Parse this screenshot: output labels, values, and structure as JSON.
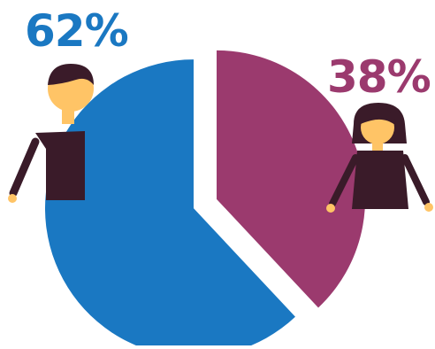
{
  "chart_data": {
    "type": "pie",
    "slices": [
      {
        "label": "62%",
        "value": 62,
        "color": "#1a78c2",
        "icon": "man-icon"
      },
      {
        "label": "38%",
        "value": 38,
        "color": "#9b3a6e",
        "icon": "woman-icon"
      }
    ]
  },
  "labels": {
    "male_pct": "62%",
    "female_pct": "38%"
  },
  "colors": {
    "male": "#1a78c2",
    "female": "#9b3a6e",
    "skin": "#ffc466",
    "hair": "#3a1b29"
  }
}
